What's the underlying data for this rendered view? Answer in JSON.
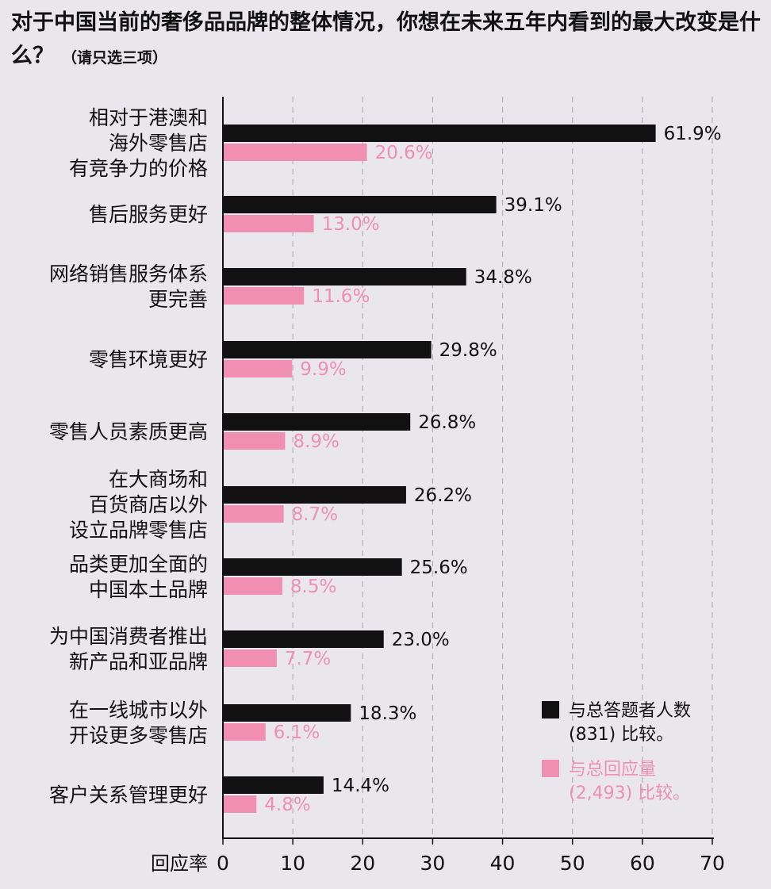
{
  "chart_data": {
    "type": "bar",
    "orientation": "horizontal",
    "title": "对于中国当前的奢侈品品牌的整体情况，你想在未来五年内看到的最大改变是什么？",
    "title_note": "（请只选三项）",
    "xlabel": "回应率",
    "xlim": [
      0,
      70
    ],
    "xticks": [
      "0",
      "10",
      "20",
      "30",
      "40",
      "50",
      "60",
      "70"
    ],
    "grid": "vertical-dashed",
    "legend_position": "bottom-right",
    "categories": [
      [
        "相对于港澳和",
        "海外零售店",
        "有竞争力的价格"
      ],
      [
        "售后服务更好"
      ],
      [
        "网络销售服务体系",
        "更完善"
      ],
      [
        "零售环境更好"
      ],
      [
        "零售人员素质更高"
      ],
      [
        "在大商场和",
        "百货商店以外",
        "设立品牌零售店"
      ],
      [
        "品类更加全面的",
        "中国本土品牌"
      ],
      [
        "为中国消费者推出",
        "新产品和亚品牌"
      ],
      [
        "在一线城市以外",
        "开设更多零售店"
      ],
      [
        "客户关系管理更好"
      ]
    ],
    "series": [
      {
        "name": "与总答题者人数 (831) 比较。",
        "legend_lines": [
          "与总答题者人数",
          "(831) 比较。"
        ],
        "color": "#111111",
        "values": [
          61.9,
          39.1,
          34.8,
          29.8,
          26.8,
          26.2,
          25.6,
          23.0,
          18.3,
          14.4
        ],
        "labels": [
          "61.9%",
          "39.1%",
          "34.8%",
          "29.8%",
          "26.8%",
          "26.2%",
          "25.6%",
          "23.0%",
          "18.3%",
          "14.4%"
        ]
      },
      {
        "name": "与总回应量 (2,493) 比较。",
        "legend_lines": [
          "与总回应量",
          "(2,493) 比较。"
        ],
        "color": "#f08fb0",
        "values": [
          20.6,
          13.0,
          11.6,
          9.9,
          8.9,
          8.7,
          8.5,
          7.7,
          6.1,
          4.8
        ],
        "labels": [
          "20.6%",
          "13.0%",
          "11.6%",
          "9.9%",
          "8.9%",
          "8.7%",
          "8.5%",
          "7.7%",
          "6.1%",
          "4.8%"
        ]
      }
    ]
  }
}
